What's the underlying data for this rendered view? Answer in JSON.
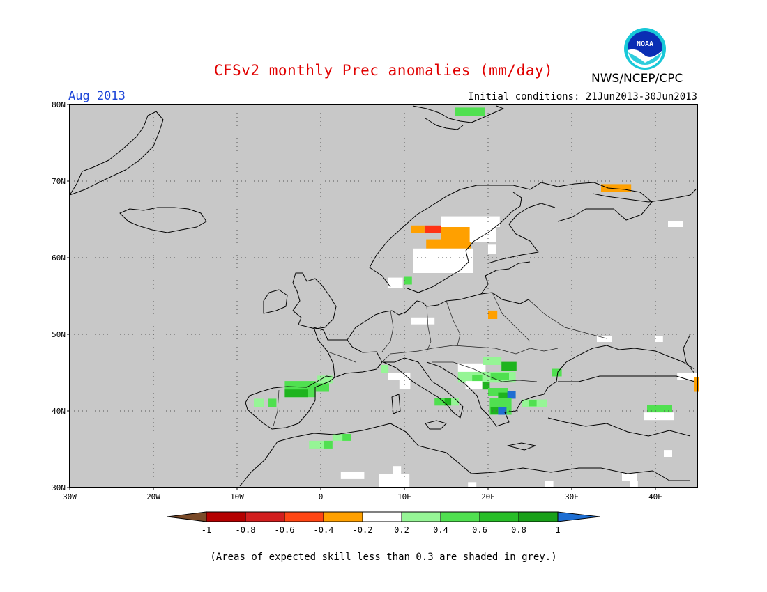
{
  "title": "CFSv2 monthly Prec anomalies (mm/day)",
  "valid_month": "Aug 2013",
  "initial_conditions": "Initial conditions: 21Jun2013-30Jun2013",
  "agency": "NWS/NCEP/CPC",
  "logo_text": "NOAA",
  "footnote": "(Areas of expected skill less than 0.3 are shaded in grey.)",
  "map": {
    "lon_range": [
      -30,
      45
    ],
    "lat_range": [
      30,
      80
    ],
    "lon_ticks": [
      {
        "value": -30,
        "label": "30W"
      },
      {
        "value": -20,
        "label": "20W"
      },
      {
        "value": -10,
        "label": "10W"
      },
      {
        "value": 0,
        "label": "0"
      },
      {
        "value": 10,
        "label": "10E"
      },
      {
        "value": 20,
        "label": "20E"
      },
      {
        "value": 30,
        "label": "30E"
      },
      {
        "value": 40,
        "label": "40E"
      }
    ],
    "lat_ticks": [
      {
        "value": 30,
        "label": "30N"
      },
      {
        "value": 40,
        "label": "40N"
      },
      {
        "value": 50,
        "label": "50N"
      },
      {
        "value": 60,
        "label": "60N"
      },
      {
        "value": 70,
        "label": "70N"
      },
      {
        "value": 80,
        "label": "80N"
      }
    ],
    "background_color": "#c8c8c8",
    "cells": [
      {
        "lon": 16,
        "lat": 78.5,
        "w": 3.6,
        "h": 1.1,
        "color": "#50e050"
      },
      {
        "lon": 33.5,
        "lat": 68.6,
        "w": 3.6,
        "h": 1.0,
        "color": "#ffa000"
      },
      {
        "lon": 12.4,
        "lat": 63.2,
        "w": 2.0,
        "h": 1.0,
        "color": "#ff3214"
      },
      {
        "lon": 10.8,
        "lat": 63.2,
        "w": 1.6,
        "h": 1.0,
        "color": "#ffa000"
      },
      {
        "lon": 14.4,
        "lat": 62.2,
        "w": 3.6,
        "h": 2.2,
        "color": "#ffa000"
      },
      {
        "lon": 12.6,
        "lat": 61.2,
        "w": 5.4,
        "h": 1.2,
        "color": "#ffa000"
      },
      {
        "lon": 14.4,
        "lat": 64.0,
        "w": 7.0,
        "h": 1.4,
        "color": "#ffffff"
      },
      {
        "lon": 17.8,
        "lat": 62.0,
        "w": 3.2,
        "h": 2.0,
        "color": "#ffffff"
      },
      {
        "lon": 11.0,
        "lat": 58.0,
        "w": 7.2,
        "h": 3.2,
        "color": "#ffffff"
      },
      {
        "lon": 8.0,
        "lat": 56.0,
        "w": 1.8,
        "h": 1.4,
        "color": "#ffffff"
      },
      {
        "lon": 10.0,
        "lat": 56.5,
        "w": 0.9,
        "h": 1.0,
        "color": "#50e050"
      },
      {
        "lon": 20.0,
        "lat": 60.5,
        "w": 1.0,
        "h": 1.2,
        "color": "#ffffff"
      },
      {
        "lon": 10.8,
        "lat": 51.3,
        "w": 2.8,
        "h": 0.9,
        "color": "#ffffff"
      },
      {
        "lon": 20.0,
        "lat": 52.0,
        "w": 1.1,
        "h": 1.1,
        "color": "#ffa000"
      },
      {
        "lon": 41.5,
        "lat": 64.0,
        "w": 1.8,
        "h": 0.8,
        "color": "#ffffff"
      },
      {
        "lon": 33.0,
        "lat": 49.0,
        "w": 1.8,
        "h": 0.8,
        "color": "#ffffff"
      },
      {
        "lon": 40.0,
        "lat": 49.0,
        "w": 0.9,
        "h": 0.8,
        "color": "#ffffff"
      },
      {
        "lon": 42.6,
        "lat": 44.0,
        "w": 2.4,
        "h": 1.0,
        "color": "#ffffff"
      },
      {
        "lon": 44.6,
        "lat": 42.5,
        "w": 0.6,
        "h": 1.9,
        "color": "#ffa000"
      },
      {
        "lon": 39.0,
        "lat": 39.8,
        "w": 3.0,
        "h": 1.0,
        "color": "#50e050"
      },
      {
        "lon": 38.6,
        "lat": 38.8,
        "w": 3.6,
        "h": 1.0,
        "color": "#ffffff"
      },
      {
        "lon": 41.0,
        "lat": 34.0,
        "w": 1.0,
        "h": 0.9,
        "color": "#ffffff"
      },
      {
        "lon": -4.3,
        "lat": 41.8,
        "w": 3.7,
        "h": 2.1,
        "color": "#50e050"
      },
      {
        "lon": -4.3,
        "lat": 41.8,
        "w": 2.8,
        "h": 1.0,
        "color": "#1eb41e"
      },
      {
        "lon": -0.6,
        "lat": 42.5,
        "w": 1.6,
        "h": 1.2,
        "color": "#50e050"
      },
      {
        "lon": -0.4,
        "lat": 43.6,
        "w": 1.8,
        "h": 1.0,
        "color": "#96f596"
      },
      {
        "lon": -8.0,
        "lat": 40.5,
        "w": 1.2,
        "h": 1.1,
        "color": "#96f596"
      },
      {
        "lon": -6.3,
        "lat": 40.5,
        "w": 1.0,
        "h": 1.1,
        "color": "#50e050"
      },
      {
        "lon": -1.4,
        "lat": 35.1,
        "w": 2.8,
        "h": 1.0,
        "color": "#96f596"
      },
      {
        "lon": 0.4,
        "lat": 35.1,
        "w": 1.0,
        "h": 1.0,
        "color": "#50e050"
      },
      {
        "lon": 1.4,
        "lat": 36.1,
        "w": 2.2,
        "h": 0.9,
        "color": "#96f596"
      },
      {
        "lon": 2.6,
        "lat": 36.1,
        "w": 1.0,
        "h": 0.9,
        "color": "#50e050"
      },
      {
        "lon": 7.2,
        "lat": 45.0,
        "w": 0.9,
        "h": 1.0,
        "color": "#96f596"
      },
      {
        "lon": 8.0,
        "lat": 44.0,
        "w": 2.7,
        "h": 1.0,
        "color": "#ffffff"
      },
      {
        "lon": 9.4,
        "lat": 42.9,
        "w": 1.3,
        "h": 1.2,
        "color": "#ffffff"
      },
      {
        "lon": 13.6,
        "lat": 40.7,
        "w": 1.3,
        "h": 1.0,
        "color": "#50e050"
      },
      {
        "lon": 14.8,
        "lat": 40.7,
        "w": 0.8,
        "h": 1.0,
        "color": "#1eb41e"
      },
      {
        "lon": 15.6,
        "lat": 40.7,
        "w": 0.9,
        "h": 1.0,
        "color": "#96f596"
      },
      {
        "lon": 16.4,
        "lat": 45.0,
        "w": 3.3,
        "h": 1.2,
        "color": "#ffffff"
      },
      {
        "lon": 19.4,
        "lat": 46.0,
        "w": 2.2,
        "h": 1.0,
        "color": "#96f596"
      },
      {
        "lon": 21.6,
        "lat": 45.2,
        "w": 1.8,
        "h": 1.2,
        "color": "#1eb41e"
      },
      {
        "lon": 16.4,
        "lat": 43.7,
        "w": 6.9,
        "h": 1.4,
        "color": "#96f596"
      },
      {
        "lon": 18.1,
        "lat": 43.7,
        "w": 1.2,
        "h": 1.0,
        "color": "#50e050"
      },
      {
        "lon": 20.3,
        "lat": 44.0,
        "w": 2.2,
        "h": 1.0,
        "color": "#50e050"
      },
      {
        "lon": 19.3,
        "lat": 42.8,
        "w": 0.9,
        "h": 1.0,
        "color": "#1eb41e"
      },
      {
        "lon": 17.3,
        "lat": 42.9,
        "w": 2.0,
        "h": 1.0,
        "color": "#ffffff"
      },
      {
        "lon": 20.0,
        "lat": 42.0,
        "w": 2.4,
        "h": 1.0,
        "color": "#50e050"
      },
      {
        "lon": 21.2,
        "lat": 41.0,
        "w": 1.2,
        "h": 1.4,
        "color": "#1eb41e"
      },
      {
        "lon": 22.3,
        "lat": 41.6,
        "w": 1.0,
        "h": 1.0,
        "color": "#1e6ed2"
      },
      {
        "lon": 20.2,
        "lat": 39.5,
        "w": 2.6,
        "h": 2.2,
        "color": "#50e050"
      },
      {
        "lon": 20.3,
        "lat": 39.6,
        "w": 0.9,
        "h": 0.9,
        "color": "#1eb41e"
      },
      {
        "lon": 21.2,
        "lat": 39.5,
        "w": 1.0,
        "h": 1.0,
        "color": "#1e6ed2"
      },
      {
        "lon": 24.0,
        "lat": 40.5,
        "w": 3.0,
        "h": 1.0,
        "color": "#96f596"
      },
      {
        "lon": 24.9,
        "lat": 40.6,
        "w": 0.9,
        "h": 0.8,
        "color": "#50e050"
      },
      {
        "lon": 27.6,
        "lat": 44.5,
        "w": 1.2,
        "h": 1.0,
        "color": "#50e050"
      },
      {
        "lon": 2.4,
        "lat": 31.1,
        "w": 2.8,
        "h": 0.9,
        "color": "#ffffff"
      },
      {
        "lon": 7.0,
        "lat": 30.0,
        "w": 3.6,
        "h": 1.8,
        "color": "#ffffff"
      },
      {
        "lon": 8.6,
        "lat": 31.8,
        "w": 1.0,
        "h": 1.0,
        "color": "#ffffff"
      },
      {
        "lon": 17.6,
        "lat": 30.0,
        "w": 1.0,
        "h": 0.7,
        "color": "#ffffff"
      },
      {
        "lon": 26.8,
        "lat": 30.0,
        "w": 1.0,
        "h": 0.9,
        "color": "#ffffff"
      },
      {
        "lon": 36.0,
        "lat": 30.9,
        "w": 1.8,
        "h": 1.0,
        "color": "#ffffff"
      },
      {
        "lon": 37.0,
        "lat": 30.0,
        "w": 0.9,
        "h": 0.9,
        "color": "#ffffff"
      }
    ]
  },
  "colorbar": {
    "below_color": "#7a4a28",
    "above_color": "#1e6ed2",
    "bins": [
      "#b40000",
      "#d21e1e",
      "#ff4614",
      "#ffa000",
      "#ffffff",
      "#96f596",
      "#50e050",
      "#28be28",
      "#19a019"
    ],
    "labels": [
      "-1",
      "-0.8",
      "-0.6",
      "-0.4",
      "-0.2",
      "0.2",
      "0.4",
      "0.6",
      "0.8",
      "1"
    ]
  }
}
